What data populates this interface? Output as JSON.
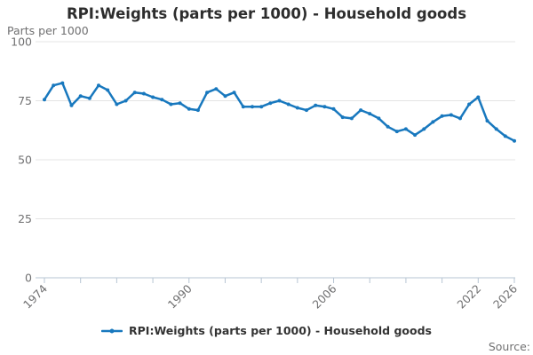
{
  "header": {
    "title": "RPI:Weights (parts per 1000) - Household goods",
    "axis_unit": "Parts per 1000"
  },
  "legend": {
    "label": "RPI:Weights (parts per 1000) - Household goods"
  },
  "source": {
    "label": "Source:"
  },
  "colors": {
    "line": "#1878be",
    "grid": "#e4e4e4",
    "axis": "#b7c5d3",
    "text_muted": "#707071",
    "text_dark": "#2d2d2d"
  },
  "chart_data": {
    "type": "line",
    "title": "RPI:Weights (parts per 1000) - Household goods",
    "xlabel": "",
    "ylabel": "Parts per 1000",
    "ylim": [
      0,
      100
    ],
    "yticks": [
      0,
      25,
      50,
      75,
      100
    ],
    "xticks_every": 4,
    "xtick_labels_shown": [
      1974,
      1990,
      2006,
      2022,
      2026
    ],
    "grid": "horizontal",
    "legend_position": "bottom",
    "series_name": "RPI:Weights (parts per 1000) - Household goods",
    "x": [
      1974,
      1975,
      1976,
      1977,
      1978,
      1979,
      1980,
      1981,
      1982,
      1983,
      1984,
      1985,
      1986,
      1987,
      1988,
      1989,
      1990,
      1991,
      1992,
      1993,
      1994,
      1995,
      1996,
      1997,
      1998,
      1999,
      2000,
      2001,
      2002,
      2003,
      2004,
      2005,
      2006,
      2007,
      2008,
      2009,
      2010,
      2011,
      2012,
      2013,
      2014,
      2015,
      2016,
      2017,
      2018,
      2019,
      2020,
      2021,
      2022,
      2023,
      2024,
      2025,
      2026
    ],
    "values": [
      75.5,
      81.5,
      82.5,
      73,
      77,
      76,
      81.5,
      79.5,
      73.5,
      75,
      78.5,
      78,
      76.5,
      75.5,
      73.5,
      74,
      71.5,
      71,
      78.5,
      80,
      77,
      78.5,
      72.5,
      72.5,
      72.5,
      74,
      75,
      73.5,
      72,
      71,
      73,
      72.5,
      71.5,
      68,
      67.5,
      71,
      69.5,
      67.5,
      64,
      62,
      63,
      60.5,
      63,
      66,
      68.5,
      69,
      67.5,
      73.5,
      76.5,
      66.5,
      63,
      60,
      58
    ]
  }
}
